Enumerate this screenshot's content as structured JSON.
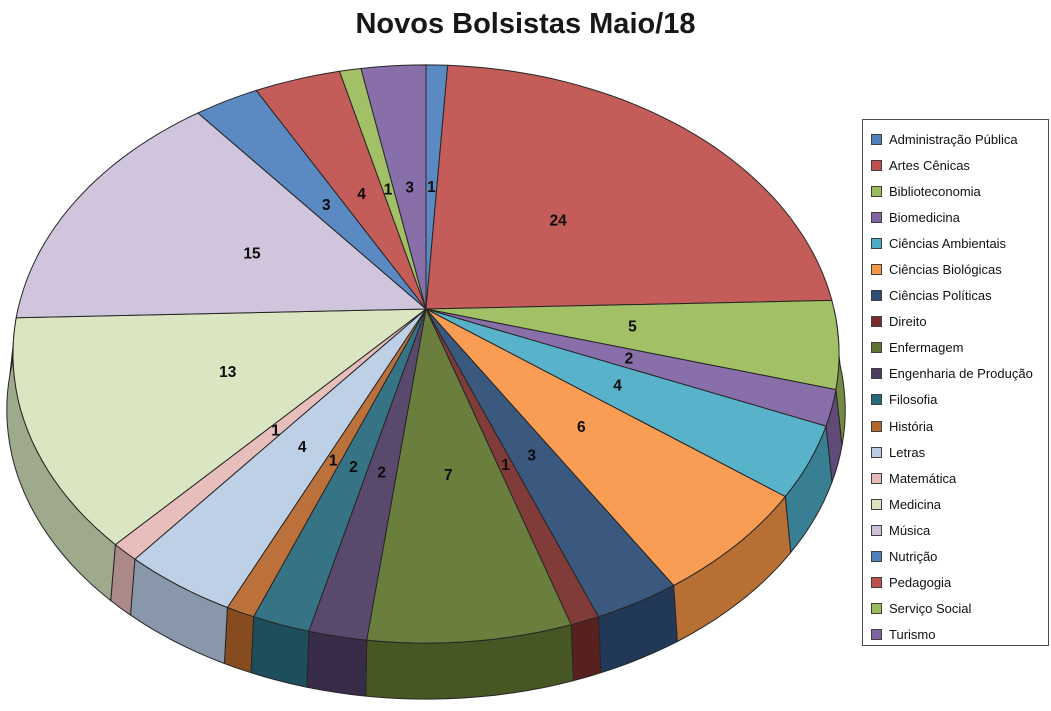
{
  "title": "Novos Bolsistas Maio/18",
  "chart_data": {
    "type": "pie",
    "style": "3d",
    "title": "Novos Bolsistas Maio/18",
    "legend_position": "right",
    "data_labels": "values",
    "start_angle_deg": 0,
    "direction": "clockwise",
    "total": 102,
    "background_color": "#FFFFFF",
    "outline_color": "#262626",
    "label_color": "#0D0D0D",
    "categories": [
      "Administração Pública",
      "Artes Cênicas",
      "Biblioteconomia",
      "Biomedicina",
      "Ciências Ambientais",
      "Ciências Biológicas",
      "Ciências Políticas",
      "Direito",
      "Enfermagem",
      "Engenharia de Produção",
      "Filosofia",
      "História",
      "Letras",
      "Matemática",
      "Medicina",
      "Música",
      "Nutrição",
      "Pedagogia",
      "Serviço Social",
      "Turismo"
    ],
    "values": [
      1,
      24,
      5,
      2,
      4,
      6,
      3,
      1,
      7,
      2,
      2,
      1,
      4,
      1,
      13,
      15,
      3,
      4,
      1,
      3
    ],
    "colors": [
      "#4F81BD",
      "#C0504D",
      "#9BBB59",
      "#8064A2",
      "#4BACC6",
      "#F79646",
      "#2C4D75",
      "#772C2A",
      "#5F7530",
      "#4D3B62",
      "#276A7C",
      "#B7662B",
      "#B8CCE4",
      "#E6B9B8",
      "#D7E4BD",
      "#CCC1DA",
      "#4F81BD",
      "#C0504D",
      "#9BBB59",
      "#8064A2"
    ]
  }
}
